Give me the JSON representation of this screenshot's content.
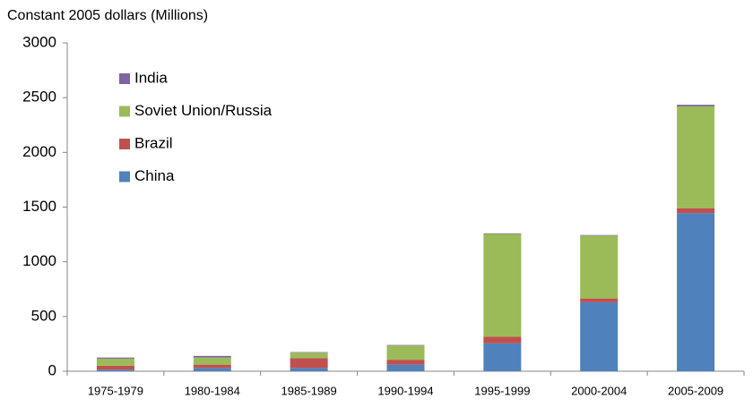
{
  "chart_data": {
    "type": "stacked_bar",
    "y_label": "Constant 2005 dollars (Millions)",
    "categories": [
      "1975-1979",
      "1980-1984",
      "1985-1989",
      "1990-1994",
      "1995-1999",
      "2000-2004",
      "2005-2009"
    ],
    "series": [
      {
        "name": "China",
        "color": "#4f81bd",
        "values": [
          15,
          30,
          30,
          60,
          255,
          630,
          1445
        ]
      },
      {
        "name": "Brazil",
        "color": "#c0504d",
        "values": [
          35,
          30,
          90,
          45,
          60,
          35,
          45
        ]
      },
      {
        "name": "Soviet Union/Russia",
        "color": "#9bbb59",
        "values": [
          65,
          65,
          50,
          130,
          940,
          575,
          930
        ]
      },
      {
        "name": "India",
        "color": "#8064a2",
        "values": [
          10,
          15,
          5,
          5,
          5,
          5,
          15
        ]
      }
    ],
    "ylim": [
      0,
      3000
    ],
    "yticks": [
      0,
      500,
      1000,
      1500,
      2000,
      2500,
      3000
    ],
    "legend": "upper-left"
  }
}
